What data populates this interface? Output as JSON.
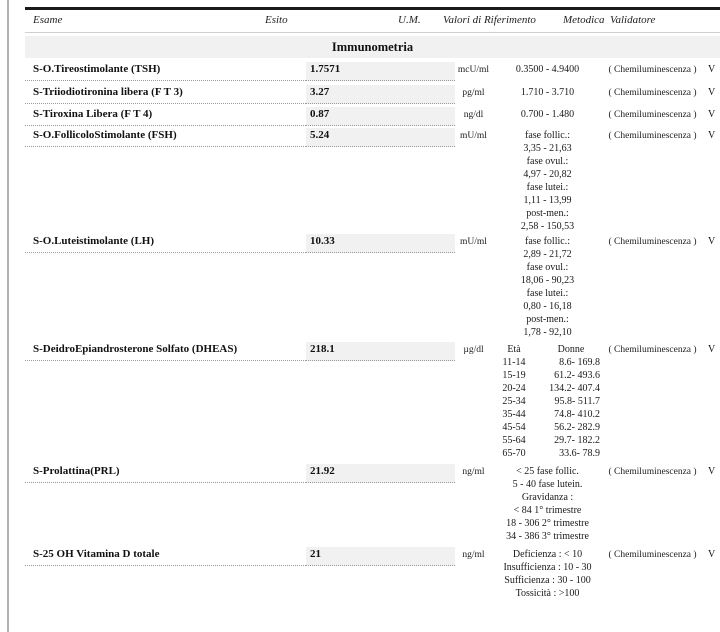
{
  "colors": {
    "band_bg": "#f1f1f1",
    "esito_bg": "#f1f1f1",
    "top_rule": "#1a1a1a",
    "thin_rule": "#cfcfcf",
    "dotted_line": "#9a9a9a",
    "edge_bar": "#b3b3b3",
    "text": "#111111"
  },
  "header": {
    "columns": [
      "Esame",
      "Esito",
      "U.M.",
      "Valori di Riferimento",
      "Metodica",
      "Validatore"
    ]
  },
  "section": {
    "title": "Immunometria"
  },
  "rows": [
    {
      "name": "S-O.Tireostimolante (TSH)",
      "result": "1.7571",
      "unit": "mcU/ml",
      "ref_lines": [
        "0.3500  -  4.9400"
      ],
      "method": "( Chemiluminescenza )",
      "validator": "V"
    },
    {
      "name": "S-Triiodiotironina libera (F T 3)",
      "result": "3.27",
      "unit": "pg/ml",
      "ref_lines": [
        "1.710  -  3.710"
      ],
      "method": "( Chemiluminescenza )",
      "validator": "V"
    },
    {
      "name": "S-Tiroxina Libera (F T 4)",
      "result": "0.87",
      "unit": "ng/dl",
      "ref_lines": [
        "0.700  -  1.480"
      ],
      "method": "( Chemiluminescenza )",
      "validator": "V"
    },
    {
      "name": "S-O.FollicoloStimolante (FSH)",
      "result": "5.24",
      "unit": "mU/ml",
      "ref_lines": [
        "fase follic.:",
        "3,35 - 21,63",
        "fase ovul.:",
        "4,97 - 20,82",
        "fase lutei.:",
        "1,11 - 13,99",
        "post-men.:",
        "2,58 - 150,53"
      ],
      "method": "( Chemiluminescenza )",
      "validator": "V"
    },
    {
      "name": "S-O.Luteistimolante (LH)",
      "result": "10.33",
      "unit": "mU/ml",
      "ref_lines": [
        "fase follic.:",
        "2,89  -  21,72",
        "fase ovul.:",
        "18,06  -  90,23",
        "fase lutei.:",
        "0,80  -  16,18",
        "post-men.:",
        "1,78  -  92,10"
      ],
      "method": "( Chemiluminescenza )",
      "validator": "V"
    },
    {
      "name": "S-DeidroEpiandrosterone Solfato (DHEAS)",
      "result": "218.1",
      "unit": "µg/dl",
      "ref_table": {
        "headers": [
          "Età",
          "Donne"
        ],
        "rows": [
          [
            "11-14",
            "8.6- 169.8"
          ],
          [
            "15-19",
            "61.2- 493.6"
          ],
          [
            "20-24",
            "134.2- 407.4"
          ],
          [
            "25-34",
            "95.8- 511.7"
          ],
          [
            "35-44",
            "74.8- 410.2"
          ],
          [
            "45-54",
            "56.2- 282.9"
          ],
          [
            "55-64",
            "29.7- 182.2"
          ],
          [
            "65-70",
            "33.6- 78.9"
          ]
        ]
      },
      "method": "( Chemiluminescenza )",
      "validator": "V"
    },
    {
      "name": "S-Prolattina(PRL)",
      "result": "21.92",
      "unit": "ng/ml",
      "ref_lines": [
        "< 25 fase follic.",
        "5 -  40  fase lutein.",
        "Gravidanza :",
        "< 84  1° trimestre",
        "18 - 306  2° trimestre",
        "34 - 386  3° trimestre"
      ],
      "method": "( Chemiluminescenza )",
      "validator": "V"
    },
    {
      "name": "S-25 OH Vitamina D totale",
      "result": "21",
      "unit": "ng/ml",
      "ref_lines": [
        "Deficienza   :  < 10",
        "Insufficienza  :  10 -  30",
        "Sufficienza    : 30 - 100",
        "Tossicità      :  >100"
      ],
      "method": "( Chemiluminescenza )",
      "validator": "V"
    }
  ]
}
